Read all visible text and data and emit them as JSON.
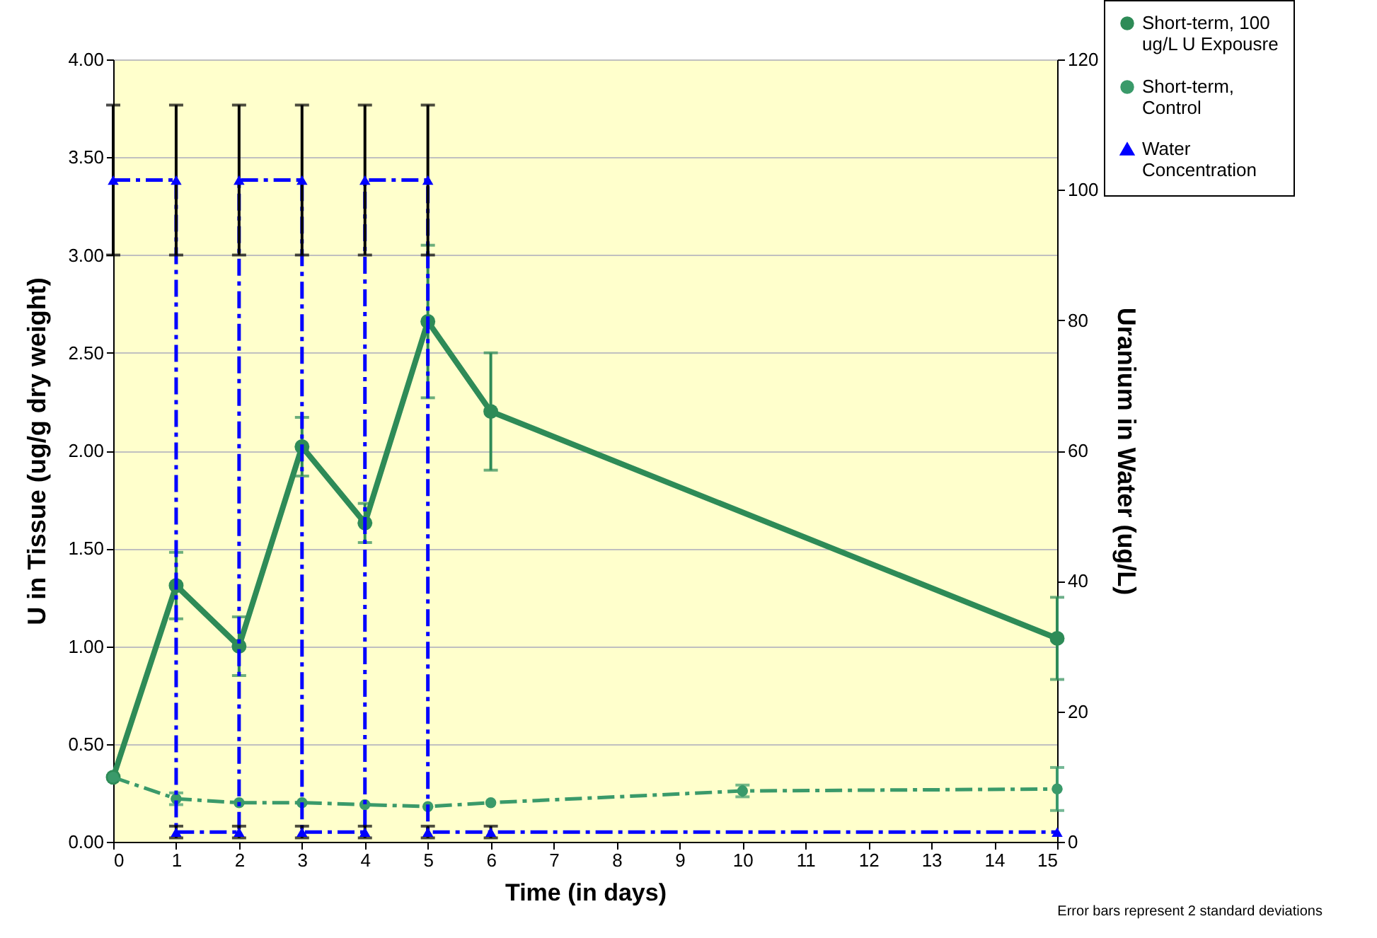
{
  "chart_data": {
    "type": "line",
    "xlabel": "Time (in days)",
    "ylabel": "U in Tissue (ug/g dry weight)",
    "y2label": "Uranium in Water (ug/L)",
    "xlim": [
      0,
      15
    ],
    "xticks": [
      0,
      1,
      2,
      3,
      4,
      5,
      6,
      7,
      8,
      9,
      10,
      11,
      12,
      13,
      14,
      15
    ],
    "ylim": [
      0,
      4
    ],
    "yticks": [
      {
        "value": 0,
        "label": "0.00"
      },
      {
        "value": 0.5,
        "label": "0.50"
      },
      {
        "value": 1,
        "label": "1.00"
      },
      {
        "value": 1.5,
        "label": "1.50"
      },
      {
        "value": 2,
        "label": "2.00"
      },
      {
        "value": 2.5,
        "label": "2.50"
      },
      {
        "value": 3,
        "label": "3.00"
      },
      {
        "value": 3.5,
        "label": "3.50"
      },
      {
        "value": 4,
        "label": "4.00"
      }
    ],
    "y2lim": [
      0,
      120
    ],
    "y2ticks": [
      0,
      20,
      40,
      60,
      80,
      100,
      120
    ],
    "grid": "y",
    "legend": "top right",
    "annotations": [
      "Error bars represent 2 standard deviations"
    ],
    "series": [
      {
        "name": "Short-term, 100 ug/L U Expousre",
        "color": "#2e8b57",
        "marker": "circle",
        "line_style": "solid",
        "x": [
          0,
          1,
          2,
          3,
          4,
          5,
          6,
          15
        ],
        "values": [
          0.33,
          1.31,
          1.0,
          2.02,
          1.63,
          2.66,
          2.2,
          1.04
        ],
        "errors": [
          null,
          0.17,
          0.15,
          0.15,
          0.1,
          0.39,
          0.3,
          0.21
        ]
      },
      {
        "name": "Short-term, Control",
        "color": "#3a9a6a",
        "marker": "circle",
        "line_style": "dashed",
        "x": [
          0,
          1,
          2,
          3,
          4,
          5,
          6,
          10,
          15
        ],
        "values": [
          0.33,
          0.22,
          0.2,
          0.2,
          0.19,
          0.18,
          0.2,
          0.26,
          0.27
        ],
        "errors": [
          null,
          0.03,
          null,
          null,
          null,
          null,
          null,
          0.03,
          0.11
        ]
      },
      {
        "name": "Water Concentration",
        "color": "#0000ff",
        "marker": "triangle",
        "line_style": "dashed",
        "axis": "y2",
        "x": [
          0,
          1,
          1,
          2,
          2,
          3,
          3,
          4,
          4,
          5,
          5,
          6,
          15
        ],
        "values": [
          101.5,
          101.5,
          1.5,
          1.5,
          101.5,
          101.5,
          1.5,
          1.5,
          101.5,
          101.5,
          1.5,
          1.5,
          1.5
        ],
        "errors": [
          11.5,
          11.5,
          0.9,
          0.9,
          11.5,
          11.5,
          0.9,
          0.9,
          11.5,
          11.5,
          0.9,
          0.9,
          null
        ]
      }
    ]
  }
}
